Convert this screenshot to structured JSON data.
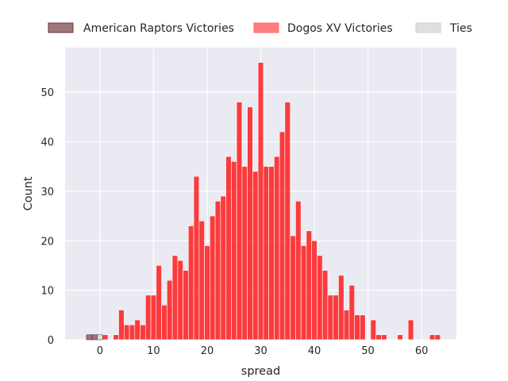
{
  "chart_data": {
    "type": "bar",
    "xlabel": "spread",
    "ylabel": "Count",
    "xlim": [
      -6.5,
      66.5
    ],
    "ylim": [
      0,
      59
    ],
    "xticks": [
      0,
      10,
      20,
      30,
      40,
      50,
      60
    ],
    "yticks": [
      0,
      10,
      20,
      30,
      40,
      50
    ],
    "grid": true,
    "legend_position": "top, horizontal",
    "bin_width": 1,
    "series": [
      {
        "name": "American Raptors Victories",
        "color": "#8b4a4f",
        "points": [
          [
            -2,
            1
          ],
          [
            -1,
            1
          ]
        ]
      },
      {
        "name": "Dogos XV Victories",
        "color": "#ff0000",
        "points": [
          [
            1,
            1
          ],
          [
            3,
            1
          ],
          [
            4,
            6
          ],
          [
            5,
            3
          ],
          [
            6,
            3
          ],
          [
            7,
            4
          ],
          [
            8,
            3
          ],
          [
            9,
            9
          ],
          [
            10,
            9
          ],
          [
            11,
            15
          ],
          [
            12,
            7
          ],
          [
            13,
            12
          ],
          [
            14,
            17
          ],
          [
            15,
            16
          ],
          [
            16,
            14
          ],
          [
            17,
            23
          ],
          [
            18,
            33
          ],
          [
            19,
            24
          ],
          [
            20,
            19
          ],
          [
            21,
            25
          ],
          [
            22,
            28
          ],
          [
            23,
            29
          ],
          [
            24,
            37
          ],
          [
            25,
            36
          ],
          [
            26,
            48
          ],
          [
            27,
            35
          ],
          [
            28,
            47
          ],
          [
            29,
            34
          ],
          [
            30,
            56
          ],
          [
            31,
            35
          ],
          [
            32,
            35
          ],
          [
            33,
            37
          ],
          [
            34,
            42
          ],
          [
            35,
            48
          ],
          [
            36,
            21
          ],
          [
            37,
            28
          ],
          [
            38,
            19
          ],
          [
            39,
            22
          ],
          [
            40,
            20
          ],
          [
            41,
            17
          ],
          [
            42,
            14
          ],
          [
            43,
            9
          ],
          [
            44,
            9
          ],
          [
            45,
            13
          ],
          [
            46,
            6
          ],
          [
            47,
            11
          ],
          [
            48,
            5
          ],
          [
            49,
            5
          ],
          [
            51,
            4
          ],
          [
            52,
            1
          ],
          [
            53,
            1
          ],
          [
            56,
            1
          ],
          [
            58,
            4
          ],
          [
            62,
            1
          ],
          [
            63,
            1
          ]
        ]
      },
      {
        "name": "Ties",
        "color": "#dcdcdc",
        "points": [
          [
            0,
            1
          ]
        ]
      }
    ]
  }
}
